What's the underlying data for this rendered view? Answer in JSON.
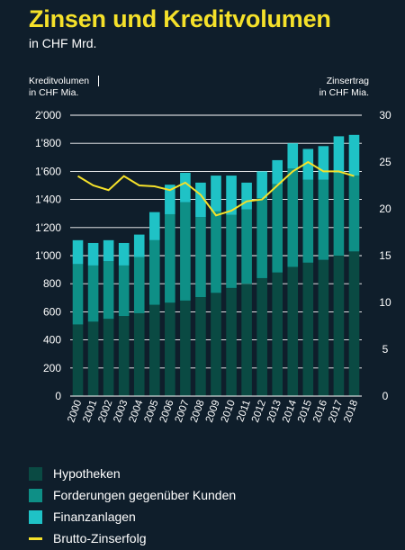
{
  "header": {
    "title": "Zinsen und Kreditvolumen",
    "subtitle": "in CHF Mrd."
  },
  "colors": {
    "background": "#0f1e2b",
    "hypotheken": "#0a4a43",
    "forderungen": "#0e8f86",
    "finanzanlagen": "#1fc2c6",
    "zinserfolg": "#f5e12a",
    "text": "#ffffff",
    "title": "#f5e12a"
  },
  "chart_data": {
    "type": "bar",
    "stacked": true,
    "title": "Zinsen und Kreditvolumen",
    "subtitle": "in CHF Mrd.",
    "ylabel_left_lines": [
      "Kreditvolumen",
      "in CHF Mia."
    ],
    "ylabel_right_lines": [
      "Zinsertrag",
      "in CHF Mia."
    ],
    "ylim_left": [
      0,
      2000
    ],
    "ylim_right": [
      0,
      30
    ],
    "yticks_left": [
      "0",
      "200",
      "400",
      "600",
      "800",
      "1'000",
      "1'200",
      "1'400",
      "1'600",
      "1'800",
      "2'000"
    ],
    "yticks_right": [
      "0",
      "5",
      "10",
      "15",
      "20",
      "25",
      "30"
    ],
    "grid": true,
    "legend_position": "bottom",
    "categories": [
      "2000",
      "2001",
      "2002",
      "2003",
      "2004",
      "2005",
      "2006",
      "2007",
      "2008",
      "2009",
      "2010",
      "2011",
      "2012",
      "2013",
      "2014",
      "2015",
      "2016",
      "2017",
      "2018"
    ],
    "series": [
      {
        "name": "Hypotheken",
        "axis": "left",
        "values": [
          510,
          530,
          550,
          570,
          590,
          650,
          665,
          680,
          705,
          735,
          770,
          800,
          840,
          880,
          920,
          950,
          970,
          1000,
          1030
        ]
      },
      {
        "name": "Forderungen gegenüber Kunden",
        "axis": "left",
        "values": [
          430,
          400,
          410,
          360,
          400,
          460,
          630,
          700,
          570,
          580,
          520,
          530,
          570,
          630,
          700,
          590,
          570,
          590,
          540
        ]
      },
      {
        "name": "Finanzanlagen",
        "axis": "left",
        "values": [
          170,
          160,
          150,
          160,
          160,
          200,
          210,
          210,
          245,
          255,
          280,
          190,
          190,
          170,
          180,
          220,
          240,
          260,
          290
        ]
      },
      {
        "name": "Brutto-Zinserfolg",
        "axis": "right",
        "type": "line",
        "values": [
          23.5,
          22.5,
          22.0,
          23.5,
          22.5,
          22.4,
          22.0,
          22.8,
          21.5,
          19.3,
          19.8,
          20.8,
          21.0,
          22.5,
          24.0,
          25.0,
          24.0,
          24.0,
          23.5
        ]
      }
    ]
  }
}
